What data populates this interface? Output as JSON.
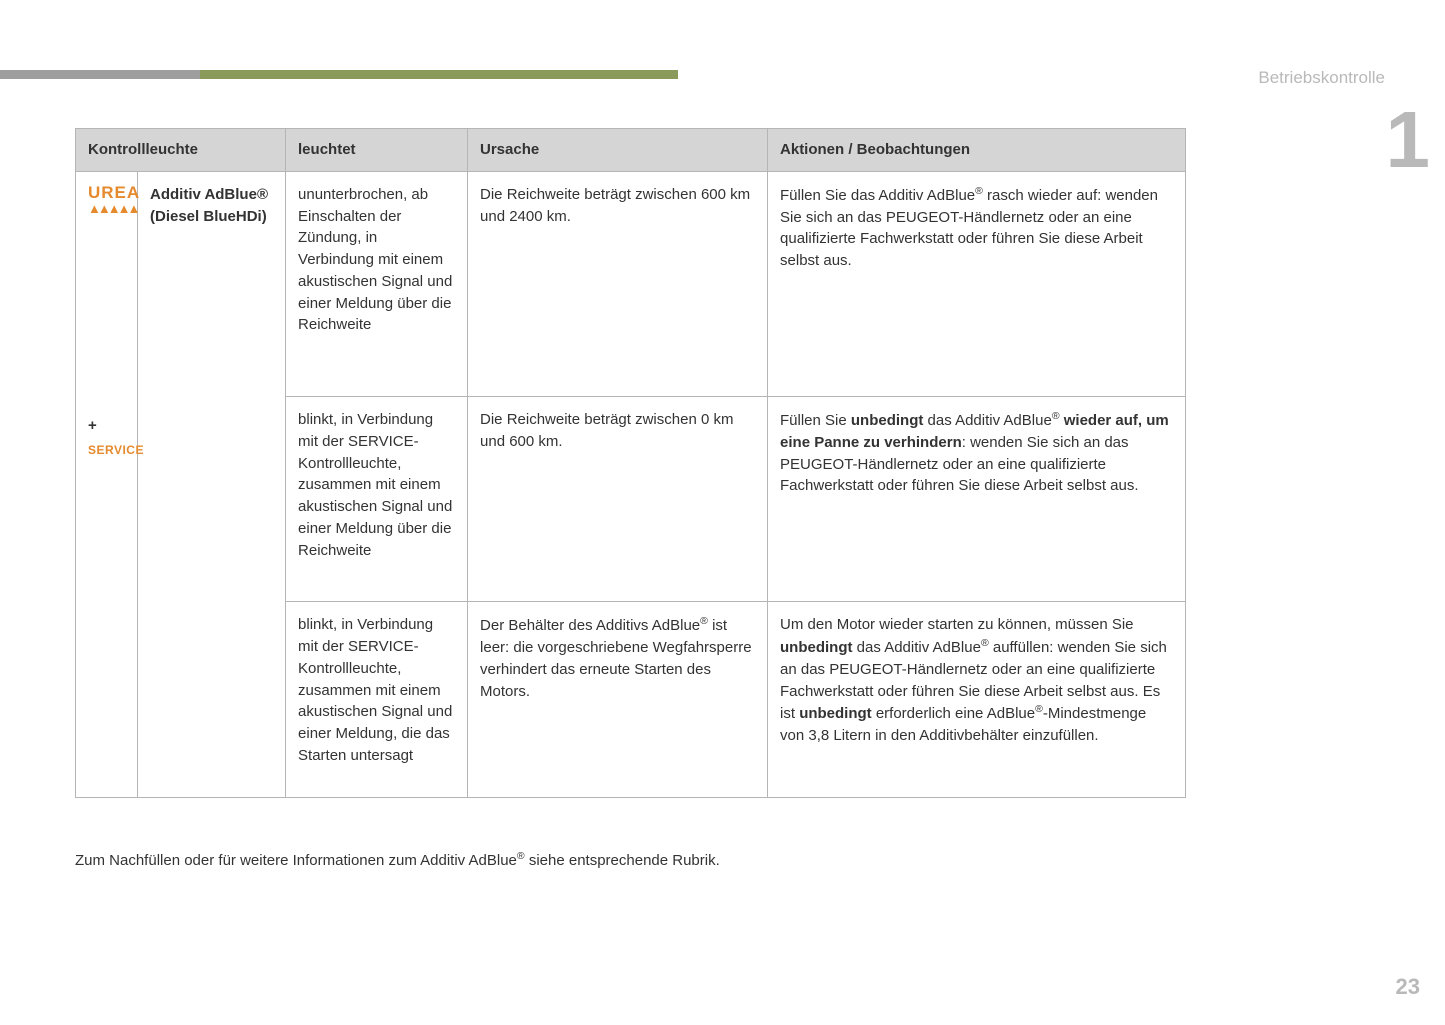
{
  "page": {
    "section_label": "Betriebskontrolle",
    "chapter_number": "1",
    "page_number": "23",
    "top_bar": {
      "seg1_color": "#9e9e9e",
      "seg2_color": "#8a9a5b"
    },
    "label_color": "#b9b9b9",
    "chapter_color": "#b9b9b9"
  },
  "icons": {
    "urea_text": "UREA",
    "urea_color": "#e68a2e",
    "plus": "+",
    "service_text": "SERVICE",
    "service_color": "#e68a2e"
  },
  "table": {
    "headers": {
      "kontrollleuchte": "Kontrollleuchte",
      "leuchtet": "leuchtet",
      "ursache": "Ursache",
      "aktionen": "Aktionen / Beobachtungen"
    },
    "name_cell": {
      "title": "Additiv AdBlue®",
      "subtitle": "(Diesel BlueHDi)"
    },
    "rows": [
      {
        "leuchtet": "ununterbrochen, ab Einschalten der Zündung, in Verbindung mit einem akustischen Signal und einer Meldung über die Reichweite",
        "ursache": "Die Reichweite beträgt zwischen 600 km und 2400 km.",
        "aktionen_html": "Füllen Sie das Additiv AdBlue<sup>®</sup> rasch wieder auf: wenden Sie sich an das PEUGEOT-Händlernetz oder an eine qualifizierte Fachwerkstatt oder führen Sie diese Arbeit selbst aus."
      },
      {
        "leuchtet": "blinkt, in Verbindung mit der SERVICE-Kontrollleuchte, zusammen mit einem akustischen Signal und einer Meldung über die Reichweite",
        "ursache": "Die Reichweite beträgt zwischen 0 km und 600 km.",
        "aktionen_html": "Füllen Sie <b>unbedingt</b> das Additiv AdBlue<sup>®</sup> <b>wieder auf, um eine Panne zu verhindern</b>: wenden Sie sich an das PEUGEOT-Händlernetz oder an eine qualifizierte Fachwerkstatt oder führen Sie diese Arbeit selbst aus."
      },
      {
        "leuchtet": "blinkt, in Verbindung mit der SERVICE-Kontrollleuchte, zusammen mit einem akustischen Signal und einer Meldung, die das Starten untersagt",
        "ursache_html": "Der Behälter des Additivs AdBlue<sup>®</sup> ist leer: die vorgeschriebene Wegfahrsperre verhindert das erneute Starten des Motors.",
        "aktionen_html": "Um den Motor wieder starten zu können, müssen Sie <b>unbedingt</b> das Additiv AdBlue<sup>®</sup> auffüllen: wenden Sie sich an das PEUGEOT-Händlernetz oder an eine qualifizierte Fachwerkstatt oder führen Sie diese Arbeit selbst aus. Es ist <b>unbedingt</b> erforderlich eine AdBlue<sup>®</sup>-Mindestmenge von 3,8 Litern in den Additivbehälter einzufüllen."
      }
    ]
  },
  "footer_note_html": "Zum Nachfüllen oder für weitere Informationen zum Additiv AdBlue<sup>®</sup> siehe entsprechende Rubrik."
}
